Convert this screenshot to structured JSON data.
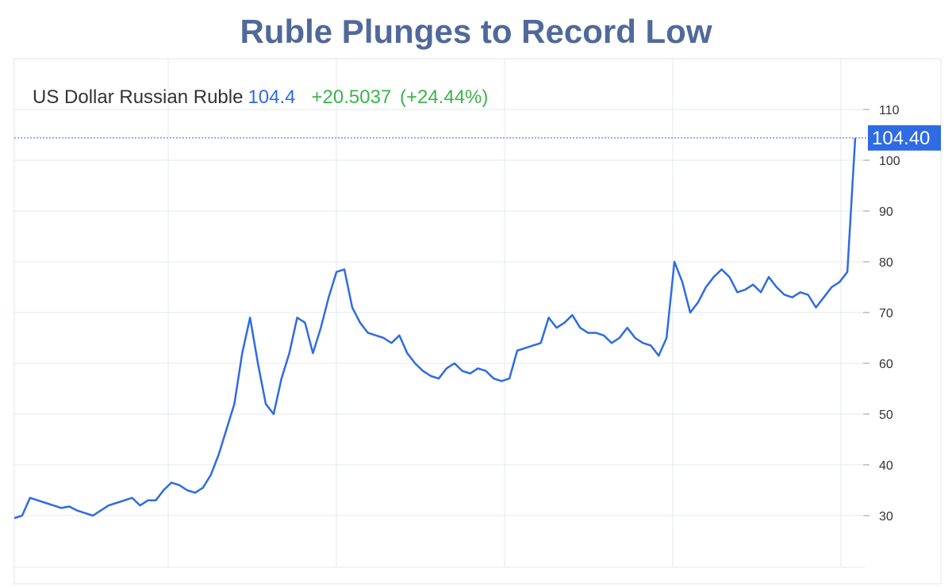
{
  "chart_data": {
    "type": "line",
    "title": "Ruble Plunges to Record Low",
    "legend": {
      "name": "US Dollar Russian Ruble",
      "price": "104.4",
      "change": "+20.5037",
      "change_pct": "(+24.44%)"
    },
    "last_price_label": "104.40",
    "ylim": [
      20,
      110
    ],
    "yticks": [
      30,
      40,
      50,
      60,
      70,
      80,
      90,
      100,
      110
    ],
    "grid": true,
    "series": [
      {
        "values": [
          29.5,
          30,
          33.5,
          33,
          32.5,
          32,
          31.5,
          31.8,
          31,
          30.5,
          30,
          31,
          32,
          32.5,
          33,
          33.5,
          32,
          33,
          33,
          35,
          36.5,
          36,
          35,
          34.5,
          35.5,
          38,
          42,
          47,
          52,
          62,
          69,
          60,
          52,
          50,
          57,
          62,
          69,
          68,
          62,
          67,
          73,
          78,
          78.5,
          71,
          68,
          66,
          65.5,
          65,
          64,
          65.5,
          62,
          60,
          58.5,
          57.5,
          57,
          59,
          60,
          58.5,
          58,
          59,
          58.5,
          57,
          56.5,
          57,
          62.5,
          63,
          63.5,
          64,
          69,
          67,
          68,
          69.5,
          67,
          66,
          66,
          65.5,
          64,
          65,
          67,
          65,
          64,
          63.5,
          61.5,
          65,
          80,
          76,
          70,
          72,
          75,
          77,
          78.5,
          77,
          74,
          74.5,
          75.5,
          74,
          77,
          75,
          73.5,
          73,
          74,
          73.5,
          71,
          73,
          75,
          76,
          78,
          104.4
        ]
      }
    ]
  },
  "colors": {
    "title": "#50699a",
    "line": "#2f6be2",
    "change": "#3bb54a",
    "grid": "#e3e8ef"
  }
}
